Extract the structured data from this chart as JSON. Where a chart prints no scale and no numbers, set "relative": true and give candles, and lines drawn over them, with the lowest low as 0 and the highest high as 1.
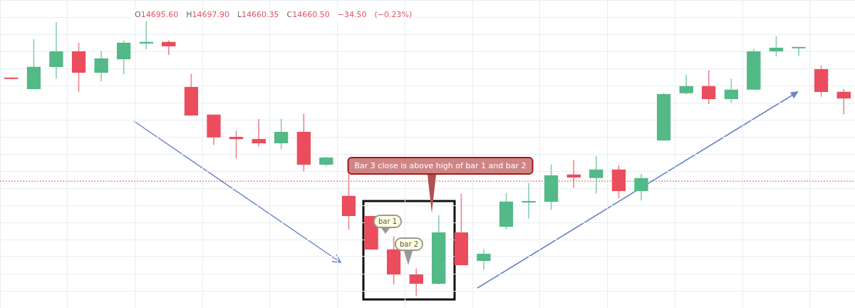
{
  "chart_data": {
    "type": "candlestick",
    "relative": true,
    "grid": true,
    "subtitle": "O14695.60 H14697.90 L14660.35 C14660.50 −34.50 (−0.23%)",
    "categories": [
      null,
      null,
      null,
      null,
      null,
      null,
      null,
      null,
      null,
      null,
      null,
      null,
      null,
      null,
      null,
      null,
      null,
      null,
      null,
      null,
      null,
      null,
      null,
      null,
      null,
      null,
      null,
      null,
      null,
      null,
      null,
      null,
      null,
      null,
      null,
      null,
      null,
      null
    ],
    "ohlc": [
      [
        0.795,
        0.795,
        0.79,
        0.79
      ],
      [
        0.753,
        0.935,
        0.753,
        0.834
      ],
      [
        0.834,
        0.997,
        0.792,
        0.891
      ],
      [
        0.891,
        0.922,
        0.743,
        0.813
      ],
      [
        0.813,
        0.891,
        0.782,
        0.865
      ],
      [
        0.862,
        0.93,
        0.808,
        0.922
      ],
      [
        0.919,
        1,
        0.899,
        0.925
      ],
      [
        0.925,
        0.93,
        0.878,
        0.909
      ],
      [
        0.761,
        0.808,
        0.657,
        0.657
      ],
      [
        0.66,
        0.66,
        0.551,
        0.577
      ],
      [
        0.579,
        0.6,
        0.501,
        0.571
      ],
      [
        0.571,
        0.644,
        0.545,
        0.556
      ],
      [
        0.556,
        0.644,
        0.535,
        0.597
      ],
      [
        0.597,
        0.662,
        0.455,
        0.478
      ],
      [
        0.478,
        0.506,
        0.473,
        0.504
      ],
      [
        0.364,
        0.501,
        0.242,
        0.291
      ],
      [
        0.291,
        0.291,
        0.169,
        0.169
      ],
      [
        0.169,
        0.216,
        0.042,
        0.078
      ],
      [
        0.078,
        0.099,
        0,
        0.044
      ],
      [
        0.044,
        0.293,
        0.042,
        0.231
      ],
      [
        0.231,
        0.371,
        0.112,
        0.112
      ],
      [
        0.127,
        0.169,
        0.096,
        0.153
      ],
      [
        0.252,
        0.374,
        0.242,
        0.343
      ],
      [
        0.34,
        0.41,
        0.283,
        0.343
      ],
      [
        0.343,
        0.478,
        0.314,
        0.439
      ],
      [
        0.442,
        0.494,
        0.395,
        0.431
      ],
      [
        0.429,
        0.509,
        0.374,
        0.46
      ],
      [
        0.46,
        0.475,
        0.356,
        0.382
      ],
      [
        0.382,
        0.444,
        0.348,
        0.429
      ],
      [
        0.566,
        0.738,
        0.566,
        0.735
      ],
      [
        0.738,
        0.805,
        0.735,
        0.764
      ],
      [
        0.764,
        0.821,
        0.699,
        0.717
      ],
      [
        0.717,
        0.79,
        0.704,
        0.751
      ],
      [
        0.751,
        0.899,
        0.751,
        0.891
      ],
      [
        0.891,
        0.945,
        0.873,
        0.904
      ],
      [
        0.902,
        0.904,
        0.875,
        0.904
      ],
      [
        0.826,
        0.839,
        0.727,
        0.743
      ],
      [
        0.743,
        0.753,
        0.662,
        0.719
      ]
    ],
    "colors": [
      "#eb4d5c",
      "#53b987",
      "#53b987",
      "#eb4d5c",
      "#53b987",
      "#53b987",
      "#53b987",
      "#eb4d5c",
      "#eb4d5c",
      "#eb4d5c",
      "#eb4d5c",
      "#eb4d5c",
      "#53b987",
      "#eb4d5c",
      "#53b987",
      "#eb4d5c",
      "#eb4d5c",
      "#eb4d5c",
      "#eb4d5c",
      "#53b987",
      "#eb4d5c",
      "#53b987",
      "#53b987",
      "#53b987",
      "#53b987",
      "#eb4d5c",
      "#53b987",
      "#eb4d5c",
      "#53b987",
      "#53b987",
      "#53b987",
      "#eb4d5c",
      "#53b987",
      "#53b987",
      "#53b987",
      "#53b987",
      "#eb4d5c",
      "#eb4d5c"
    ],
    "ref_lines": [
      {
        "axis": "y",
        "value": 0.418,
        "color": "#e05561",
        "line_style": "dotted"
      }
    ],
    "annotations": [
      "Bar 3 close is above high of bar 1 and bar 2",
      "bar 1",
      "bar 2"
    ]
  }
}
